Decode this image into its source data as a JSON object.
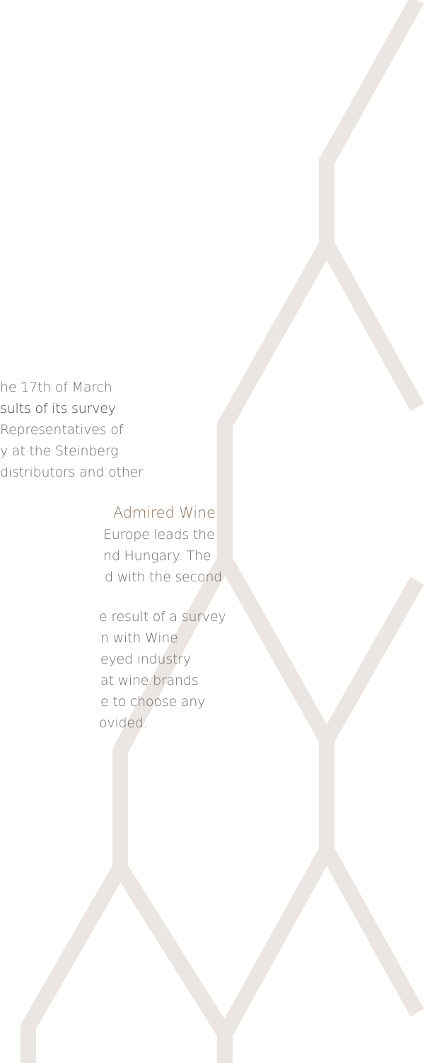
{
  "text": {
    "lines": [
      "he 17th of March",
      "sults of its survey",
      "Representatives of",
      "y at the Steinberg",
      "distributors and other",
      "Admired Wine",
      "Europe leads the",
      "nd Hungary. The",
      "d with the second",
      "e result of a survey",
      "n with  Wine",
      "eyed industry",
      "at wine brands",
      "e to choose any",
      "ovided."
    ]
  }
}
